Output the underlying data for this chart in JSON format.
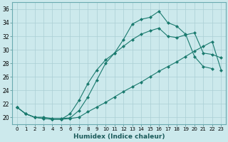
{
  "xlabel": "Humidex (Indice chaleur)",
  "background_color": "#cce9ec",
  "grid_color": "#aacfd4",
  "line_color": "#1a7a6e",
  "xlim": [
    -0.5,
    23.5
  ],
  "ylim": [
    19,
    37
  ],
  "yticks": [
    20,
    22,
    24,
    26,
    28,
    30,
    32,
    34,
    36
  ],
  "xticks": [
    0,
    1,
    2,
    3,
    4,
    5,
    6,
    7,
    8,
    9,
    10,
    11,
    12,
    13,
    14,
    15,
    16,
    17,
    18,
    19,
    20,
    21,
    22,
    23
  ],
  "series1_x": [
    0,
    1,
    2,
    3,
    4,
    5,
    6,
    7,
    8,
    9,
    10,
    11,
    12,
    13,
    14,
    15,
    16,
    17,
    18,
    19,
    20,
    21,
    22
  ],
  "series1_y": [
    21.5,
    20.5,
    20.0,
    20.0,
    19.8,
    19.8,
    19.9,
    21.0,
    23.0,
    25.5,
    28.0,
    29.5,
    31.5,
    33.8,
    34.5,
    34.8,
    35.7,
    34.0,
    33.5,
    32.3,
    29.0,
    27.5,
    27.2
  ],
  "series2_x": [
    0,
    1,
    2,
    3,
    4,
    5,
    6,
    7,
    8,
    9,
    10,
    11,
    12,
    13,
    14,
    15,
    16,
    17,
    18,
    19,
    20,
    21,
    22,
    23
  ],
  "series2_y": [
    21.5,
    20.5,
    20.0,
    19.8,
    19.7,
    19.7,
    20.5,
    22.5,
    25.0,
    27.0,
    28.5,
    29.5,
    30.5,
    31.5,
    32.3,
    32.8,
    33.2,
    32.0,
    31.8,
    32.2,
    32.5,
    29.5,
    29.3,
    28.8
  ],
  "series3_x": [
    0,
    1,
    2,
    3,
    4,
    5,
    6,
    7,
    8,
    9,
    10,
    11,
    12,
    13,
    14,
    15,
    16,
    17,
    18,
    19,
    20,
    21,
    22,
    23
  ],
  "series3_y": [
    21.5,
    20.5,
    20.0,
    19.8,
    19.7,
    19.7,
    19.8,
    20.0,
    20.8,
    21.5,
    22.2,
    23.0,
    23.8,
    24.5,
    25.2,
    26.0,
    26.8,
    27.5,
    28.2,
    29.0,
    29.8,
    30.5,
    31.2,
    27.0
  ]
}
